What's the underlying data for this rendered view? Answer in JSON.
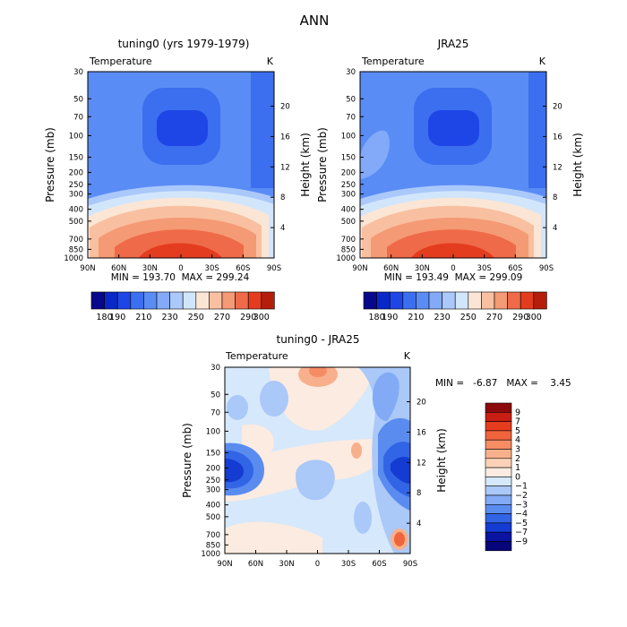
{
  "figure_title": "ANN",
  "chart_data": [
    {
      "type": "heatmap",
      "title": "tuning0 (yrs 1979-1979)",
      "variable": "Temperature",
      "units": "K",
      "ylabel": "Pressure (mb)",
      "y2label": "Height (km)",
      "x_tick_labels": [
        "90N",
        "60N",
        "30N",
        "0",
        "30S",
        "60S",
        "90S"
      ],
      "y_tick_labels": [
        "30",
        "50",
        "70",
        "100",
        "150",
        "200",
        "250",
        "300",
        "400",
        "500",
        "700",
        "850",
        "1000"
      ],
      "y2_tick_labels": [
        "20",
        "16",
        "12",
        "8",
        "4"
      ],
      "stats": "MIN = 193.70  MAX = 299.24",
      "min": 193.7,
      "max": 299.24,
      "colorbar": {
        "orientation": "horizontal",
        "levels": [
          180,
          190,
          200,
          210,
          220,
          230,
          240,
          250,
          260,
          270,
          280,
          290,
          300
        ],
        "labels": [
          "180",
          "190",
          "210",
          "230",
          "250",
          "270",
          "290",
          "300"
        ],
        "colors": [
          "#08088c",
          "#0a28c8",
          "#1e46e6",
          "#3c6ef0",
          "#5a8cf5",
          "#82aaf8",
          "#aac8fa",
          "#d2e6fb",
          "#fbe6d6",
          "#f8c0a0",
          "#f49a74",
          "#ef6a48",
          "#e43c1e",
          "#b41e0a"
        ]
      }
    },
    {
      "type": "heatmap",
      "title": "JRA25",
      "variable": "Temperature",
      "units": "K",
      "ylabel": "Pressure (mb)",
      "y2label": "Height (km)",
      "x_tick_labels": [
        "90N",
        "60N",
        "30N",
        "0",
        "30S",
        "60S",
        "90S"
      ],
      "y_tick_labels": [
        "30",
        "50",
        "70",
        "100",
        "150",
        "200",
        "250",
        "300",
        "400",
        "500",
        "700",
        "850",
        "1000"
      ],
      "y2_tick_labels": [
        "20",
        "16",
        "12",
        "8",
        "4"
      ],
      "stats": "MIN = 193.49  MAX = 299.09",
      "min": 193.49,
      "max": 299.09,
      "colorbar": {
        "orientation": "horizontal",
        "levels": [
          180,
          190,
          200,
          210,
          220,
          230,
          240,
          250,
          260,
          270,
          280,
          290,
          300
        ],
        "labels": [
          "180",
          "190",
          "210",
          "230",
          "250",
          "270",
          "290",
          "300"
        ],
        "colors": [
          "#08088c",
          "#0a28c8",
          "#1e46e6",
          "#3c6ef0",
          "#5a8cf5",
          "#82aaf8",
          "#aac8fa",
          "#d2e6fb",
          "#fbe6d6",
          "#f8c0a0",
          "#f49a74",
          "#ef6a48",
          "#e43c1e",
          "#b41e0a"
        ]
      }
    },
    {
      "type": "heatmap",
      "title": "tuning0 - JRA25",
      "variable": "Temperature",
      "units": "K",
      "ylabel": "Pressure (mb)",
      "y2label": "Height (km)",
      "x_tick_labels": [
        "90N",
        "60N",
        "30N",
        "0",
        "30S",
        "60S",
        "90S"
      ],
      "y_tick_labels": [
        "30",
        "50",
        "70",
        "100",
        "150",
        "200",
        "250",
        "300",
        "400",
        "500",
        "700",
        "850",
        "1000"
      ],
      "y2_tick_labels": [
        "20",
        "16",
        "12",
        "8",
        "4"
      ],
      "stats": "MIN =   -6.87   MAX =    3.45",
      "min": -6.87,
      "max": 3.45,
      "colorbar": {
        "orientation": "vertical",
        "levels": [
          9,
          7,
          5,
          4,
          3,
          2,
          1,
          0,
          -1,
          -2,
          -3,
          -4,
          -5,
          -7,
          -9
        ],
        "colors": [
          "#8c0a0a",
          "#c81e14",
          "#e63c1e",
          "#f0643c",
          "#f58c64",
          "#f8b08c",
          "#fbd2b8",
          "#fcebe0",
          "#d6e8fb",
          "#aac8f8",
          "#82aaf5",
          "#5a8cf0",
          "#3264e6",
          "#143cd2",
          "#0a14a0",
          "#06067a"
        ]
      }
    }
  ]
}
